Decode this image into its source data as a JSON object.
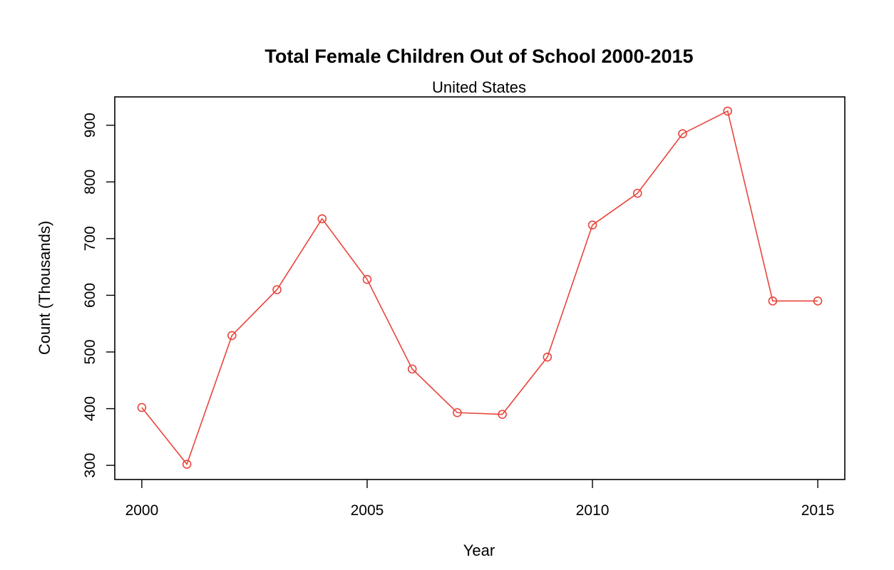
{
  "chart_data": {
    "type": "line",
    "title": "Total Female Children Out of School 2000-2015",
    "subtitle": "United States",
    "xlabel": "Year",
    "ylabel": "Count (Thousands)",
    "x": [
      2000,
      2001,
      2002,
      2003,
      2004,
      2005,
      2006,
      2007,
      2008,
      2009,
      2010,
      2011,
      2012,
      2013,
      2014,
      2015
    ],
    "series": [
      {
        "values": [
          402,
          302,
          529,
          610,
          735,
          628,
          470,
          393,
          390,
          491,
          724,
          780,
          885,
          925,
          590,
          590
        ],
        "color": "#e8453c",
        "marker": "circle-open"
      }
    ],
    "xlim": [
      1999.4,
      2015.6
    ],
    "ylim": [
      275,
      950
    ],
    "xticks": [
      "2000",
      "2005",
      "2010",
      "2015"
    ],
    "yticks": [
      "300",
      "400",
      "500",
      "600",
      "700",
      "800",
      "900"
    ],
    "grid": false,
    "legend": "none"
  }
}
